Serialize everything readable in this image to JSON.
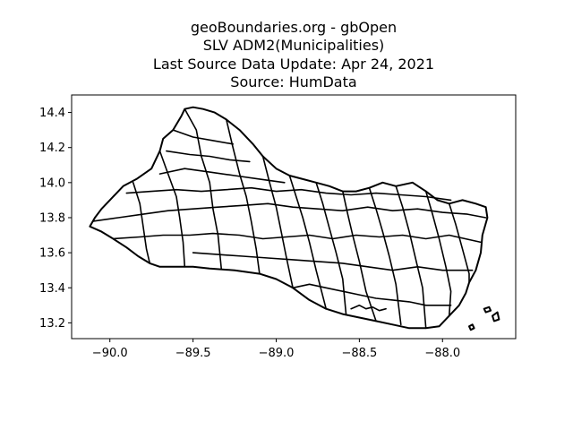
{
  "figure": {
    "title_lines": [
      "geoBoundaries.org - gbOpen",
      "SLV ADM2(Municipalities)",
      "Last Source Data Update: Apr 24, 2021",
      "Source: HumData"
    ]
  },
  "chart_data": {
    "type": "map",
    "title": "geoBoundaries.org - gbOpen\nSLV ADM2(Municipalities)\nLast Source Data Update: Apr 24, 2021\nSource: HumData",
    "xlabel": "",
    "ylabel": "",
    "xlim": [
      -90.23,
      -87.56
    ],
    "ylim": [
      13.11,
      14.5
    ],
    "x_ticks": [
      -90.0,
      -89.5,
      -89.0,
      -88.5,
      -88.0
    ],
    "x_tick_labels": [
      "−90.0",
      "−89.5",
      "−89.0",
      "−88.5",
      "−88.0"
    ],
    "y_ticks": [
      13.2,
      13.4,
      13.6,
      13.8,
      14.0,
      14.2,
      14.4
    ],
    "y_tick_labels": [
      "13.2",
      "13.4",
      "13.6",
      "13.8",
      "14.0",
      "14.2",
      "14.4"
    ],
    "grid": false,
    "line_color": "#000000",
    "fill_color": "none",
    "outline": [
      [
        -90.12,
        13.75
      ],
      [
        -90.09,
        13.8
      ],
      [
        -90.05,
        13.85
      ],
      [
        -90.0,
        13.9
      ],
      [
        -89.92,
        13.98
      ],
      [
        -89.84,
        14.02
      ],
      [
        -89.75,
        14.08
      ],
      [
        -89.7,
        14.18
      ],
      [
        -89.68,
        14.25
      ],
      [
        -89.62,
        14.3
      ],
      [
        -89.57,
        14.38
      ],
      [
        -89.55,
        14.42
      ],
      [
        -89.5,
        14.43
      ],
      [
        -89.44,
        14.42
      ],
      [
        -89.37,
        14.4
      ],
      [
        -89.3,
        14.36
      ],
      [
        -89.22,
        14.3
      ],
      [
        -89.14,
        14.22
      ],
      [
        -89.08,
        14.15
      ],
      [
        -89.0,
        14.08
      ],
      [
        -88.92,
        14.04
      ],
      [
        -88.84,
        14.02
      ],
      [
        -88.76,
        14.0
      ],
      [
        -88.68,
        13.98
      ],
      [
        -88.6,
        13.95
      ],
      [
        -88.52,
        13.95
      ],
      [
        -88.44,
        13.97
      ],
      [
        -88.36,
        14.0
      ],
      [
        -88.28,
        13.98
      ],
      [
        -88.18,
        14.0
      ],
      [
        -88.1,
        13.95
      ],
      [
        -88.03,
        13.9
      ],
      [
        -87.96,
        13.88
      ],
      [
        -87.88,
        13.9
      ],
      [
        -87.8,
        13.88
      ],
      [
        -87.74,
        13.86
      ],
      [
        -87.73,
        13.8
      ],
      [
        -87.76,
        13.7
      ],
      [
        -87.77,
        13.6
      ],
      [
        -87.8,
        13.5
      ],
      [
        -87.84,
        13.43
      ],
      [
        -87.86,
        13.37
      ],
      [
        -87.9,
        13.3
      ],
      [
        -87.96,
        13.24
      ],
      [
        -88.02,
        13.18
      ],
      [
        -88.1,
        13.17
      ],
      [
        -88.2,
        13.17
      ],
      [
        -88.3,
        13.19
      ],
      [
        -88.4,
        13.21
      ],
      [
        -88.5,
        13.23
      ],
      [
        -88.6,
        13.25
      ],
      [
        -88.7,
        13.28
      ],
      [
        -88.8,
        13.33
      ],
      [
        -88.9,
        13.4
      ],
      [
        -89.0,
        13.45
      ],
      [
        -89.1,
        13.48
      ],
      [
        -89.25,
        13.5
      ],
      [
        -89.4,
        13.51
      ],
      [
        -89.5,
        13.52
      ],
      [
        -89.62,
        13.52
      ],
      [
        -89.7,
        13.52
      ],
      [
        -89.76,
        13.54
      ],
      [
        -89.83,
        13.58
      ],
      [
        -89.9,
        13.63
      ],
      [
        -89.98,
        13.68
      ],
      [
        -90.05,
        13.72
      ],
      [
        -90.12,
        13.75
      ]
    ],
    "islands": [
      [
        [
          -87.7,
          13.24
        ],
        [
          -87.67,
          13.26
        ],
        [
          -87.66,
          13.22
        ],
        [
          -87.69,
          13.21
        ],
        [
          -87.7,
          13.24
        ]
      ],
      [
        [
          -87.75,
          13.28
        ],
        [
          -87.72,
          13.29
        ],
        [
          -87.71,
          13.27
        ],
        [
          -87.74,
          13.26
        ],
        [
          -87.75,
          13.28
        ]
      ],
      [
        [
          -87.84,
          13.18
        ],
        [
          -87.82,
          13.19
        ],
        [
          -87.81,
          13.17
        ],
        [
          -87.83,
          13.16
        ],
        [
          -87.84,
          13.18
        ]
      ]
    ],
    "internal_boundaries": [
      [
        [
          -89.86,
          14.0
        ],
        [
          -89.82,
          13.88
        ],
        [
          -89.8,
          13.75
        ],
        [
          -89.78,
          13.62
        ],
        [
          -89.76,
          13.54
        ]
      ],
      [
        [
          -89.7,
          14.18
        ],
        [
          -89.65,
          14.05
        ],
        [
          -89.6,
          13.92
        ],
        [
          -89.58,
          13.8
        ],
        [
          -89.56,
          13.66
        ],
        [
          -89.55,
          13.52
        ]
      ],
      [
        [
          -89.55,
          14.42
        ],
        [
          -89.48,
          14.3
        ],
        [
          -89.45,
          14.15
        ],
        [
          -89.4,
          14.0
        ],
        [
          -89.38,
          13.85
        ],
        [
          -89.35,
          13.7
        ],
        [
          -89.33,
          13.51
        ]
      ],
      [
        [
          -89.3,
          14.36
        ],
        [
          -89.26,
          14.2
        ],
        [
          -89.22,
          14.05
        ],
        [
          -89.18,
          13.92
        ],
        [
          -89.15,
          13.78
        ],
        [
          -89.12,
          13.62
        ],
        [
          -89.1,
          13.48
        ]
      ],
      [
        [
          -89.08,
          14.15
        ],
        [
          -89.04,
          14.0
        ],
        [
          -89.0,
          13.86
        ],
        [
          -88.97,
          13.72
        ],
        [
          -88.94,
          13.58
        ],
        [
          -88.9,
          13.4
        ]
      ],
      [
        [
          -88.92,
          14.04
        ],
        [
          -88.88,
          13.92
        ],
        [
          -88.84,
          13.8
        ],
        [
          -88.8,
          13.66
        ],
        [
          -88.76,
          13.5
        ],
        [
          -88.7,
          13.28
        ]
      ],
      [
        [
          -88.76,
          14.0
        ],
        [
          -88.72,
          13.88
        ],
        [
          -88.68,
          13.74
        ],
        [
          -88.64,
          13.6
        ],
        [
          -88.6,
          13.45
        ],
        [
          -88.58,
          13.25
        ]
      ],
      [
        [
          -88.6,
          13.95
        ],
        [
          -88.57,
          13.82
        ],
        [
          -88.54,
          13.7
        ],
        [
          -88.5,
          13.55
        ],
        [
          -88.46,
          13.38
        ],
        [
          -88.4,
          13.21
        ]
      ],
      [
        [
          -88.44,
          13.97
        ],
        [
          -88.4,
          13.85
        ],
        [
          -88.36,
          13.72
        ],
        [
          -88.32,
          13.58
        ],
        [
          -88.28,
          13.42
        ],
        [
          -88.25,
          13.19
        ]
      ],
      [
        [
          -88.28,
          13.98
        ],
        [
          -88.24,
          13.86
        ],
        [
          -88.2,
          13.72
        ],
        [
          -88.16,
          13.56
        ],
        [
          -88.12,
          13.4
        ],
        [
          -88.1,
          13.17
        ]
      ],
      [
        [
          -88.1,
          13.95
        ],
        [
          -88.06,
          13.82
        ],
        [
          -88.02,
          13.68
        ],
        [
          -87.98,
          13.52
        ],
        [
          -87.95,
          13.38
        ],
        [
          -87.96,
          13.24
        ]
      ],
      [
        [
          -87.96,
          13.88
        ],
        [
          -87.92,
          13.76
        ],
        [
          -87.88,
          13.62
        ],
        [
          -87.84,
          13.48
        ],
        [
          -87.84,
          13.43
        ]
      ],
      [
        [
          -90.1,
          13.78
        ],
        [
          -89.95,
          13.8
        ],
        [
          -89.8,
          13.82
        ],
        [
          -89.65,
          13.84
        ],
        [
          -89.5,
          13.85
        ],
        [
          -89.35,
          13.86
        ],
        [
          -89.2,
          13.87
        ],
        [
          -89.05,
          13.88
        ],
        [
          -88.9,
          13.86
        ],
        [
          -88.75,
          13.85
        ],
        [
          -88.6,
          13.84
        ],
        [
          -88.45,
          13.86
        ],
        [
          -88.3,
          13.84
        ],
        [
          -88.15,
          13.85
        ],
        [
          -88.0,
          13.83
        ],
        [
          -87.85,
          13.82
        ],
        [
          -87.74,
          13.8
        ]
      ],
      [
        [
          -89.98,
          13.68
        ],
        [
          -89.82,
          13.69
        ],
        [
          -89.68,
          13.7
        ],
        [
          -89.52,
          13.7
        ],
        [
          -89.38,
          13.71
        ],
        [
          -89.22,
          13.7
        ],
        [
          -89.08,
          13.68
        ],
        [
          -88.94,
          13.69
        ],
        [
          -88.8,
          13.7
        ],
        [
          -88.66,
          13.68
        ],
        [
          -88.52,
          13.7
        ],
        [
          -88.38,
          13.69
        ],
        [
          -88.24,
          13.7
        ],
        [
          -88.1,
          13.68
        ],
        [
          -87.96,
          13.7
        ],
        [
          -87.77,
          13.66
        ]
      ],
      [
        [
          -89.5,
          13.6
        ],
        [
          -89.35,
          13.59
        ],
        [
          -89.2,
          13.58
        ],
        [
          -89.05,
          13.57
        ],
        [
          -88.9,
          13.56
        ],
        [
          -88.75,
          13.55
        ],
        [
          -88.6,
          13.54
        ],
        [
          -88.45,
          13.52
        ],
        [
          -88.3,
          13.5
        ],
        [
          -88.15,
          13.52
        ],
        [
          -88.0,
          13.5
        ],
        [
          -87.82,
          13.5
        ]
      ],
      [
        [
          -89.7,
          14.05
        ],
        [
          -89.55,
          14.08
        ],
        [
          -89.4,
          14.06
        ],
        [
          -89.25,
          14.04
        ],
        [
          -89.1,
          14.02
        ],
        [
          -88.95,
          14.0
        ]
      ],
      [
        [
          -89.62,
          14.3
        ],
        [
          -89.5,
          14.26
        ],
        [
          -89.38,
          14.24
        ],
        [
          -89.26,
          14.22
        ]
      ],
      [
        [
          -89.66,
          14.18
        ],
        [
          -89.52,
          14.16
        ],
        [
          -89.4,
          14.15
        ],
        [
          -89.28,
          14.13
        ],
        [
          -89.16,
          14.12
        ]
      ],
      [
        [
          -89.9,
          13.94
        ],
        [
          -89.75,
          13.95
        ],
        [
          -89.6,
          13.96
        ],
        [
          -89.45,
          13.95
        ],
        [
          -89.3,
          13.96
        ],
        [
          -89.15,
          13.97
        ],
        [
          -89.0,
          13.95
        ],
        [
          -88.85,
          13.96
        ],
        [
          -88.7,
          13.94
        ],
        [
          -88.55,
          13.93
        ],
        [
          -88.4,
          13.94
        ],
        [
          -88.25,
          13.93
        ],
        [
          -88.1,
          13.92
        ],
        [
          -87.95,
          13.9
        ]
      ],
      [
        [
          -88.9,
          13.4
        ],
        [
          -88.8,
          13.42
        ],
        [
          -88.7,
          13.4
        ],
        [
          -88.6,
          13.38
        ],
        [
          -88.5,
          13.36
        ],
        [
          -88.4,
          13.34
        ],
        [
          -88.3,
          13.33
        ],
        [
          -88.2,
          13.32
        ],
        [
          -88.1,
          13.3
        ],
        [
          -87.95,
          13.3
        ]
      ],
      [
        [
          -88.55,
          13.28
        ],
        [
          -88.5,
          13.3
        ],
        [
          -88.46,
          13.28
        ],
        [
          -88.42,
          13.29
        ],
        [
          -88.38,
          13.27
        ],
        [
          -88.34,
          13.28
        ]
      ]
    ]
  }
}
